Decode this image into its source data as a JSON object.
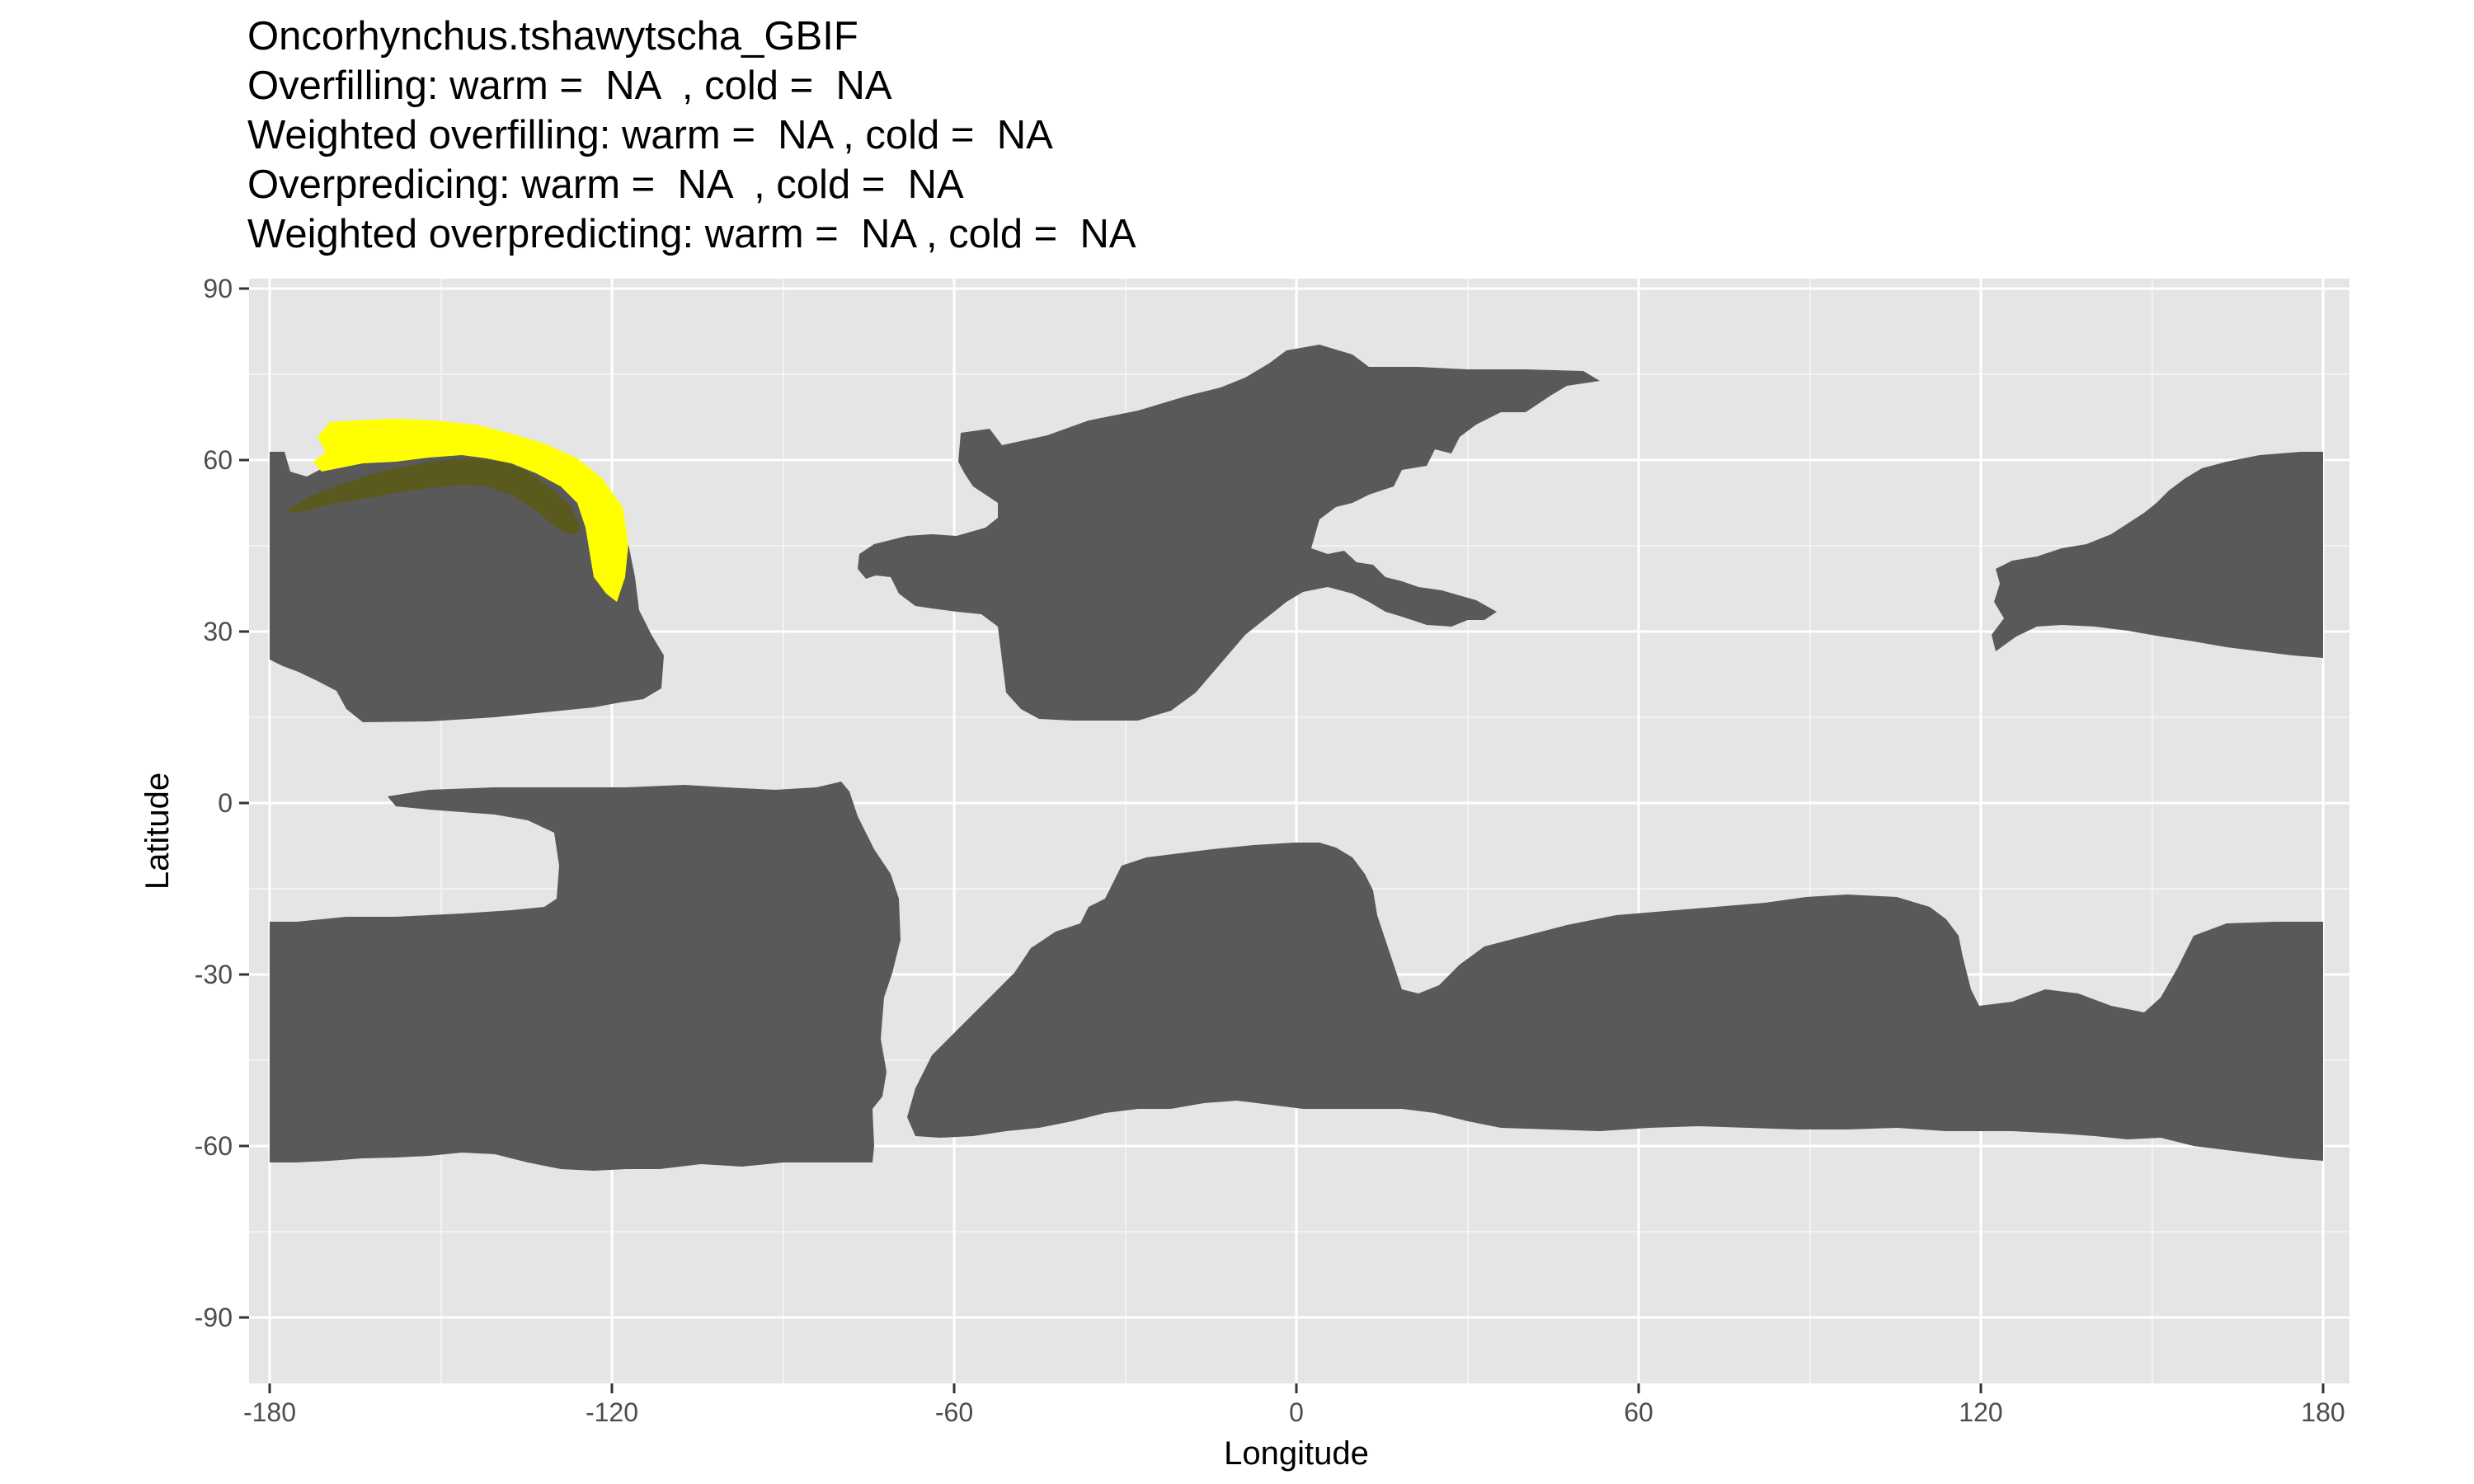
{
  "title_lines": [
    "Oncorhynchus.tshawytscha_GBIF",
    "Overfilling: warm =  NA  , cold =  NA",
    "Weighted overfilling: warm =  NA , cold =  NA",
    "Overpredicing: warm =  NA  , cold =  NA",
    "Weighted overpredicting: warm =  NA , cold =  NA"
  ],
  "axes": {
    "x_title": "Longitude",
    "y_title": "Latitude",
    "x_ticks": [
      "-180",
      "-120",
      "-60",
      "0",
      "60",
      "120",
      "180"
    ],
    "y_ticks": [
      "90",
      "60",
      "30",
      "0",
      "-30",
      "-60",
      "-90"
    ],
    "xlim": [
      -180,
      180
    ],
    "ylim": [
      -90,
      90
    ],
    "grid": true
  },
  "colors": {
    "panel": "#e5e5e5",
    "grid": "#ffffff",
    "land": "#595959",
    "range_highlight": "#ffff00"
  },
  "legend": "none"
}
